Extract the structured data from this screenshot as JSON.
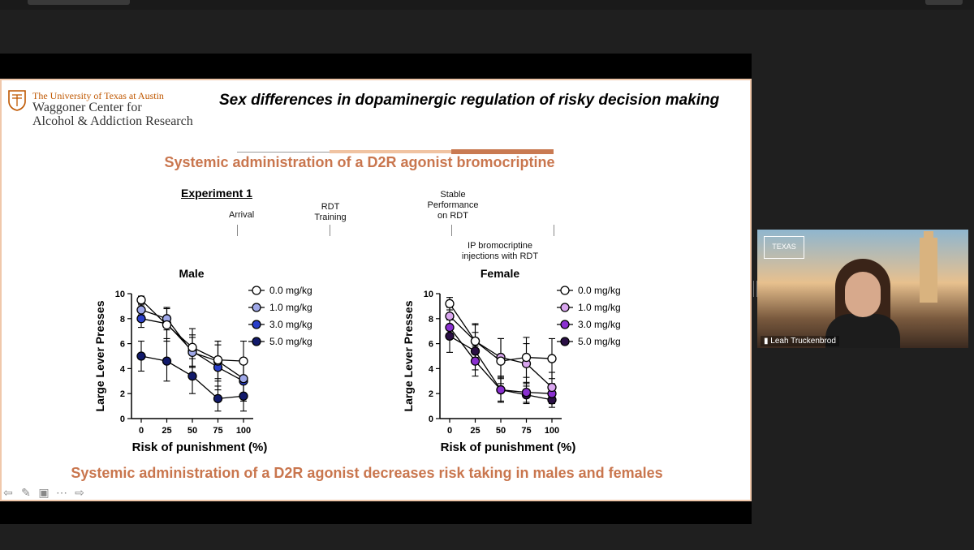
{
  "window": {},
  "slide": {
    "logo": {
      "university": "The University of Texas at Austin",
      "center_line1": "Waggoner Center for",
      "center_line2": "Alcohol & Addiction Research"
    },
    "title": "Sex differences in dopaminergic regulation of risky decision making",
    "subtitle": "Systemic administration of a D2R agonist bromocriptine",
    "experiment_label": "Experiment 1",
    "timeline": {
      "arrival": "Arrival",
      "rdt_training_1": "RDT",
      "rdt_training_2": "Training",
      "stable_1": "Stable",
      "stable_2": "Performance",
      "stable_3": "on RDT",
      "ip_1": "IP bromocriptine",
      "ip_2": "injections with RDT"
    },
    "conclusion": "Systemic administration of a D2R agonist decreases risk taking in males and females"
  },
  "chart_data": [
    {
      "type": "line",
      "title": "Male",
      "xlabel": "Risk of punishment (%)",
      "ylabel": "Large Lever Presses",
      "x": [
        0,
        25,
        50,
        75,
        100
      ],
      "ylim": [
        0,
        10
      ],
      "yticks": [
        0,
        2,
        4,
        6,
        8,
        10
      ],
      "series": [
        {
          "name": "0.0 mg/kg",
          "color": "#ffffff",
          "values": [
            9.5,
            7.5,
            5.7,
            4.7,
            4.6
          ],
          "err": [
            0.3,
            1.3,
            1.5,
            1.5,
            1.6
          ]
        },
        {
          "name": "1.0 mg/kg",
          "color": "#9fa8e8",
          "values": [
            8.7,
            8.0,
            5.3,
            4.6,
            3.2
          ],
          "err": [
            0.4,
            0.9,
            1.2,
            1.6,
            1.4
          ]
        },
        {
          "name": "3.0 mg/kg",
          "color": "#2a3fc9",
          "values": [
            8.0,
            7.6,
            5.4,
            4.1,
            3.0
          ],
          "err": [
            0.7,
            1.2,
            1.3,
            1.8,
            1.6
          ]
        },
        {
          "name": "5.0 mg/kg",
          "color": "#121a6b",
          "values": [
            5.0,
            4.6,
            3.4,
            1.6,
            1.8
          ],
          "err": [
            1.2,
            1.6,
            1.4,
            1.0,
            1.2
          ]
        }
      ]
    },
    {
      "type": "line",
      "title": "Female",
      "xlabel": "Risk of punishment (%)",
      "ylabel": "Large Lever Presses",
      "x": [
        0,
        25,
        50,
        75,
        100
      ],
      "ylim": [
        0,
        10
      ],
      "yticks": [
        0,
        2,
        4,
        6,
        8,
        10
      ],
      "series": [
        {
          "name": "0.0 mg/kg",
          "color": "#ffffff",
          "values": [
            9.2,
            6.2,
            4.6,
            4.9,
            4.8
          ],
          "err": [
            0.5,
            1.4,
            1.8,
            1.6,
            1.6
          ]
        },
        {
          "name": "1.0 mg/kg",
          "color": "#d9a6ef",
          "values": [
            8.2,
            6.2,
            4.9,
            4.4,
            2.5
          ],
          "err": [
            0.7,
            1.3,
            1.5,
            1.6,
            1.2
          ]
        },
        {
          "name": "3.0 mg/kg",
          "color": "#8a2fd0",
          "values": [
            7.3,
            4.6,
            2.3,
            2.1,
            2.0
          ],
          "err": [
            0.9,
            1.2,
            1.0,
            0.8,
            0.8
          ]
        },
        {
          "name": "5.0 mg/kg",
          "color": "#2a0f45",
          "values": [
            6.6,
            5.4,
            2.3,
            1.9,
            1.5
          ],
          "err": [
            1.3,
            1.5,
            0.9,
            0.7,
            0.6
          ]
        }
      ]
    }
  ],
  "toolbar": {
    "icons": [
      "back-arrow-icon",
      "pen-icon",
      "caption-icon",
      "more-icon",
      "forward-arrow-icon"
    ]
  },
  "participant": {
    "name": "Leah Truckenbrod",
    "badge_line1": "PROTECT",
    "badge_line2": "TEXAS",
    "badge_line3": "TOGETHER"
  }
}
